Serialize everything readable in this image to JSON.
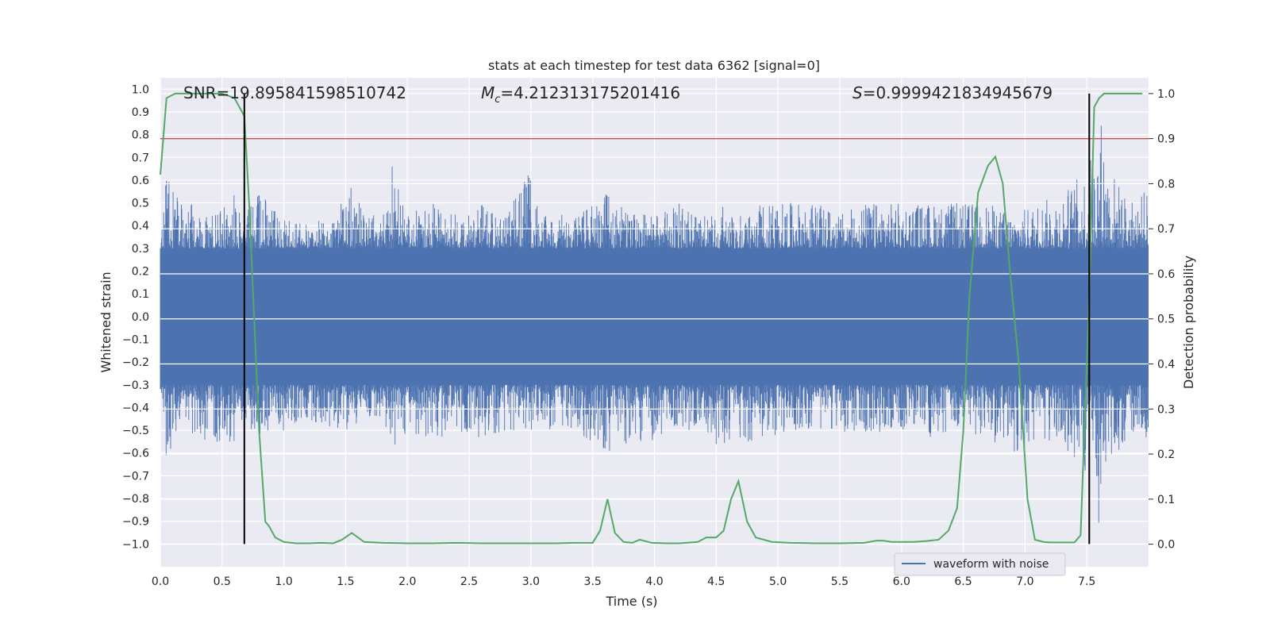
{
  "chart_data": {
    "type": "line",
    "title": "stats at each timestep for test data 6362 [signal=0]",
    "xlabel": "Time (s)",
    "ylabel": "Whitened strain",
    "y2label": "Detection probability",
    "xlim": [
      0.0,
      8.0
    ],
    "ylim": [
      -1.1,
      1.05
    ],
    "y2lim": [
      -0.05,
      1.035
    ],
    "xticks": [
      0.0,
      0.5,
      1.0,
      1.5,
      2.0,
      2.5,
      3.0,
      3.5,
      4.0,
      4.5,
      5.0,
      5.5,
      6.0,
      6.5,
      7.0,
      7.5
    ],
    "xtick_labels": [
      "0.0",
      "0.5",
      "1.0",
      "1.5",
      "2.0",
      "2.5",
      "3.0",
      "3.5",
      "4.0",
      "4.5",
      "5.0",
      "5.5",
      "6.0",
      "6.5",
      "7.0",
      "7.5"
    ],
    "yticks": [
      1.0,
      0.9,
      0.8,
      0.7,
      0.6,
      0.5,
      0.4,
      0.3,
      0.2,
      0.1,
      0.0,
      -0.1,
      -0.2,
      -0.3,
      -0.4,
      -0.5,
      -0.6,
      -0.7,
      -0.8,
      -0.9,
      -1.0
    ],
    "ytick_labels": [
      "1.0",
      "0.9",
      "0.8",
      "0.7",
      "0.6",
      "0.5",
      "0.4",
      "0.3",
      "0.2",
      "0.1",
      "0.0",
      "−0.1",
      "−0.2",
      "−0.3",
      "−0.4",
      "−0.5",
      "−0.6",
      "−0.7",
      "−0.8",
      "−0.9",
      "−1.0"
    ],
    "y2ticks": [
      1.0,
      0.9,
      0.8,
      0.7,
      0.6,
      0.5,
      0.4,
      0.3,
      0.2,
      0.1,
      0.0
    ],
    "y2tick_labels": [
      "1.0",
      "0.9",
      "0.8",
      "0.7",
      "0.6",
      "0.5",
      "0.4",
      "0.3",
      "0.2",
      "0.1",
      "0.0"
    ],
    "grid": true,
    "legend_position": "bottom-right",
    "annotations": {
      "snr": "SNR=19.895841598510742",
      "mc_symbol": "M",
      "mc_sub": "c",
      "mc_value": "=4.212313175201416",
      "s_symbol": "S",
      "s_value": "=0.9999421834945679"
    },
    "series": [
      {
        "name": "waveform with noise",
        "axis": "left",
        "color": "#4c72b0",
        "envelope": {
          "x": [
            0.0,
            0.05,
            0.2,
            0.35,
            0.45,
            0.55,
            0.6,
            0.68,
            0.8,
            1.0,
            1.2,
            1.4,
            1.55,
            1.65,
            1.8,
            1.88,
            2.0,
            2.2,
            2.4,
            2.6,
            2.8,
            2.98,
            3.1,
            3.3,
            3.5,
            3.62,
            3.8,
            4.0,
            4.2,
            4.4,
            4.55,
            4.7,
            4.9,
            5.1,
            5.3,
            5.5,
            5.7,
            5.9,
            6.1,
            6.3,
            6.5,
            6.7,
            6.9,
            7.1,
            7.3,
            7.4,
            7.5,
            7.58,
            7.62,
            7.66,
            7.75,
            7.85,
            7.95,
            8.0
          ],
          "upper": [
            0.32,
            0.62,
            0.53,
            0.45,
            0.45,
            0.5,
            0.58,
            0.45,
            0.55,
            0.45,
            0.4,
            0.45,
            0.6,
            0.45,
            0.45,
            0.67,
            0.45,
            0.5,
            0.45,
            0.5,
            0.45,
            0.63,
            0.45,
            0.45,
            0.5,
            0.55,
            0.45,
            0.45,
            0.5,
            0.45,
            0.5,
            0.45,
            0.5,
            0.5,
            0.5,
            0.45,
            0.5,
            0.5,
            0.5,
            0.5,
            0.5,
            0.5,
            0.45,
            0.5,
            0.55,
            0.6,
            0.65,
            0.8,
            0.9,
            0.7,
            0.6,
            0.5,
            0.55,
            0.55
          ],
          "lower": [
            -0.35,
            -0.63,
            -0.5,
            -0.55,
            -0.6,
            -0.55,
            -0.58,
            -0.45,
            -0.55,
            -0.5,
            -0.45,
            -0.5,
            -0.5,
            -0.45,
            -0.45,
            -0.6,
            -0.5,
            -0.55,
            -0.5,
            -0.55,
            -0.5,
            -0.5,
            -0.5,
            -0.5,
            -0.55,
            -0.6,
            -0.55,
            -0.55,
            -0.5,
            -0.5,
            -0.6,
            -0.55,
            -0.55,
            -0.5,
            -0.5,
            -0.5,
            -0.55,
            -0.5,
            -0.5,
            -0.55,
            -0.5,
            -0.55,
            -0.6,
            -0.6,
            -0.55,
            -0.7,
            -0.7,
            -0.85,
            -1.0,
            -0.75,
            -0.6,
            -0.55,
            -0.5,
            -0.57
          ],
          "core": 0.3
        }
      },
      {
        "name": "",
        "axis": "right",
        "color": "#55a868",
        "x": [
          0.0,
          0.05,
          0.12,
          0.2,
          0.3,
          0.4,
          0.5,
          0.6,
          0.68,
          0.72,
          0.76,
          0.8,
          0.85,
          0.88,
          0.93,
          1.0,
          1.1,
          1.2,
          1.3,
          1.4,
          1.47,
          1.55,
          1.65,
          1.8,
          2.0,
          2.2,
          2.4,
          2.6,
          2.8,
          3.0,
          3.2,
          3.35,
          3.5,
          3.56,
          3.62,
          3.68,
          3.75,
          3.82,
          3.88,
          3.98,
          4.1,
          4.2,
          4.35,
          4.42,
          4.5,
          4.56,
          4.62,
          4.68,
          4.75,
          4.82,
          4.95,
          5.1,
          5.3,
          5.5,
          5.7,
          5.8,
          5.85,
          5.92,
          6.0,
          6.1,
          6.2,
          6.3,
          6.38,
          6.45,
          6.5,
          6.55,
          6.62,
          6.7,
          6.76,
          6.82,
          6.88,
          6.95,
          7.02,
          7.08,
          7.15,
          7.2,
          7.3,
          7.4,
          7.45,
          7.48,
          7.52,
          7.56,
          7.6,
          7.64,
          7.7,
          7.8,
          7.9,
          7.95
        ],
        "y": [
          0.82,
          0.99,
          1.0,
          1.0,
          1.0,
          1.0,
          1.0,
          0.99,
          0.95,
          0.75,
          0.5,
          0.25,
          0.05,
          0.04,
          0.015,
          0.005,
          0.002,
          0.002,
          0.003,
          0.002,
          0.01,
          0.025,
          0.005,
          0.003,
          0.002,
          0.002,
          0.003,
          0.002,
          0.002,
          0.002,
          0.002,
          0.003,
          0.003,
          0.03,
          0.1,
          0.025,
          0.005,
          0.003,
          0.01,
          0.003,
          0.002,
          0.002,
          0.005,
          0.015,
          0.015,
          0.03,
          0.1,
          0.14,
          0.05,
          0.015,
          0.005,
          0.003,
          0.002,
          0.002,
          0.003,
          0.008,
          0.008,
          0.005,
          0.005,
          0.005,
          0.007,
          0.01,
          0.03,
          0.08,
          0.25,
          0.55,
          0.78,
          0.84,
          0.86,
          0.8,
          0.6,
          0.4,
          0.1,
          0.01,
          0.005,
          0.004,
          0.004,
          0.004,
          0.02,
          0.25,
          0.55,
          0.97,
          0.99,
          1.0,
          1.0,
          1.0,
          1.0,
          1.0
        ]
      }
    ],
    "vertical_lines": [
      {
        "x": 0.68,
        "color": "#000000"
      },
      {
        "x": 7.52,
        "color": "#000000"
      }
    ],
    "threshold_line": {
      "axis": "right",
      "y": 0.9,
      "color": "#c44e52"
    }
  }
}
